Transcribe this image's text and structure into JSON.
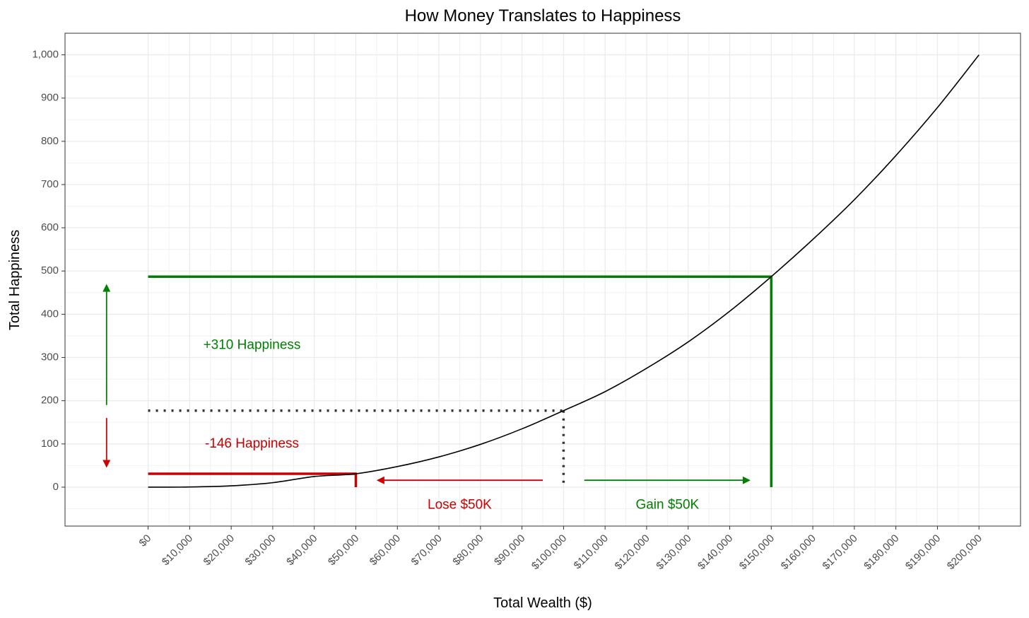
{
  "chart_data": {
    "type": "line",
    "title": "How Money Translates to Happiness",
    "xlabel": "Total Wealth ($)",
    "ylabel": "Total Happiness",
    "xlim": [
      -20000,
      210000
    ],
    "ylim": [
      -90,
      1050
    ],
    "grid": true,
    "x_ticks": [
      0,
      10000,
      20000,
      30000,
      40000,
      50000,
      60000,
      70000,
      80000,
      90000,
      100000,
      110000,
      120000,
      130000,
      140000,
      150000,
      160000,
      170000,
      180000,
      190000,
      200000
    ],
    "x_tick_labels": [
      "$0",
      "$10,000",
      "$20,000",
      "$30,000",
      "$40,000",
      "$50,000",
      "$60,000",
      "$70,000",
      "$80,000",
      "$90,000",
      "$100,000",
      "$110,000",
      "$120,000",
      "$130,000",
      "$140,000",
      "$150,000",
      "$160,000",
      "$170,000",
      "$180,000",
      "$190,000",
      "$200,000"
    ],
    "y_ticks": [
      0,
      100,
      200,
      300,
      400,
      500,
      600,
      700,
      800,
      900,
      1000
    ],
    "y_tick_labels": [
      "0",
      "100",
      "200",
      "300",
      "400",
      "500",
      "600",
      "700",
      "800",
      "900",
      "1,000"
    ],
    "series": [
      {
        "color": "#000000",
        "x": [
          0,
          10000,
          20000,
          30000,
          40000,
          50000,
          60000,
          70000,
          80000,
          90000,
          100000,
          110000,
          120000,
          130000,
          140000,
          150000,
          160000,
          170000,
          180000,
          190000,
          200000
        ],
        "y": [
          0,
          0.4,
          3.1,
          10.4,
          24.6,
          31,
          47.7,
          70,
          99,
          135,
          177,
          221,
          275,
          336,
          407,
          487,
          573,
          665,
          767,
          878,
          1000
        ]
      }
    ],
    "reference_lines": [
      {
        "style": "dotted",
        "color": "#333333",
        "points": [
          [
            0,
            177
          ],
          [
            100000,
            177
          ]
        ]
      },
      {
        "style": "dotted",
        "color": "#333333",
        "points": [
          [
            100000,
            177
          ],
          [
            100000,
            0
          ]
        ]
      },
      {
        "style": "solid",
        "color": "#008000",
        "points": [
          [
            0,
            487
          ],
          [
            150000,
            487
          ],
          [
            150000,
            0
          ]
        ]
      },
      {
        "style": "solid",
        "color": "#cc0000",
        "points": [
          [
            0,
            31
          ],
          [
            50000,
            31
          ],
          [
            50000,
            0
          ]
        ]
      }
    ],
    "arrows": [
      {
        "color": "#008000",
        "from": [
          -10000,
          190
        ],
        "to": [
          -10000,
          470
        ]
      },
      {
        "color": "#cc0000",
        "from": [
          -10000,
          160
        ],
        "to": [
          -10000,
          45
        ]
      },
      {
        "color": "#cc0000",
        "from": [
          95000,
          16
        ],
        "to": [
          55000,
          16
        ]
      },
      {
        "color": "#008000",
        "from": [
          105000,
          16
        ],
        "to": [
          145000,
          16
        ]
      }
    ],
    "annotations": [
      {
        "text": "+310 Happiness",
        "color": "#008000",
        "x": 25000,
        "y": 328
      },
      {
        "text": "-146 Happiness",
        "color": "#cc0000",
        "x": 25000,
        "y": 100
      },
      {
        "text": "Lose $50K",
        "color": "#cc0000",
        "x": 75000,
        "y": -42
      },
      {
        "text": "Gain $50K",
        "color": "#008000",
        "x": 125000,
        "y": -42
      }
    ]
  }
}
